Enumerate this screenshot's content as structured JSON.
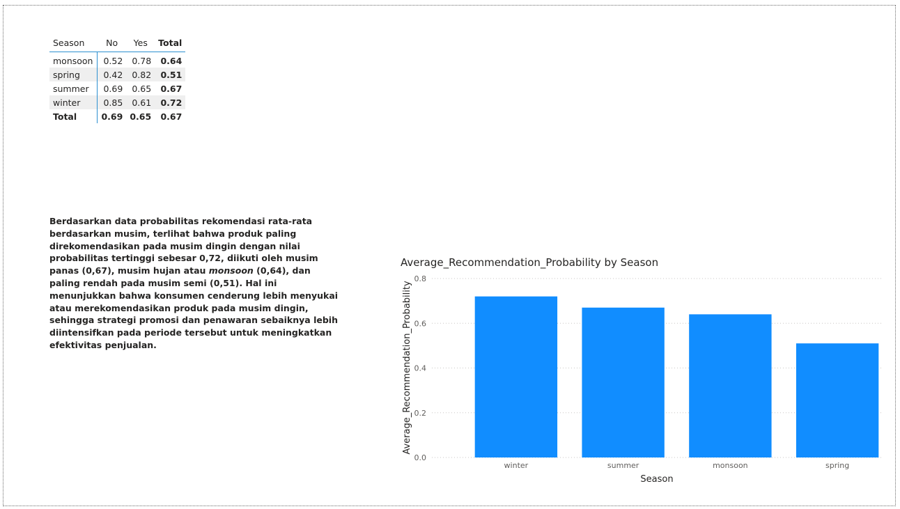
{
  "matrix": {
    "headers": {
      "season": "Season",
      "no": "No",
      "yes": "Yes",
      "total": "Total"
    },
    "rows": [
      {
        "season": "monsoon",
        "no": "0.52",
        "yes": "0.78",
        "total": "0.64"
      },
      {
        "season": "spring",
        "no": "0.42",
        "yes": "0.82",
        "total": "0.51"
      },
      {
        "season": "summer",
        "no": "0.69",
        "yes": "0.65",
        "total": "0.67"
      },
      {
        "season": "winter",
        "no": "0.85",
        "yes": "0.61",
        "total": "0.72"
      }
    ],
    "total_row": {
      "label": "Total",
      "no": "0.69",
      "yes": "0.65",
      "total": "0.67"
    }
  },
  "narrative": {
    "part1": "Berdasarkan data probabilitas rekomendasi rata-rata berdasarkan musim, terlihat bahwa produk paling direkomendasikan pada musim dingin dengan nilai probabilitas tertinggi sebesar 0,72, diikuti oleh musim panas (0,67), musim hujan atau ",
    "emphasis": "monsoon",
    "part2": " (0,64), dan paling rendah pada musim semi (0,51). Hal ini menunjukkan bahwa konsumen cenderung lebih menyukai atau merekomendasikan produk pada musim dingin, sehingga strategi promosi dan penawaran sebaiknya lebih diintensifkan pada periode tersebut untuk meningkatkan efektivitas penjualan."
  },
  "chart_data": {
    "type": "bar",
    "title": "Average_Recommendation_Probability by Season",
    "xlabel": "Season",
    "ylabel": "Average_Recommendation_Probability",
    "categories": [
      "winter",
      "summer",
      "monsoon",
      "spring"
    ],
    "values": [
      0.72,
      0.67,
      0.64,
      0.51
    ],
    "ylim": [
      0,
      0.8
    ],
    "yticks": [
      "0.0",
      "0.2",
      "0.4",
      "0.6",
      "0.8"
    ],
    "grid": true,
    "bar_color": "#118dff"
  }
}
